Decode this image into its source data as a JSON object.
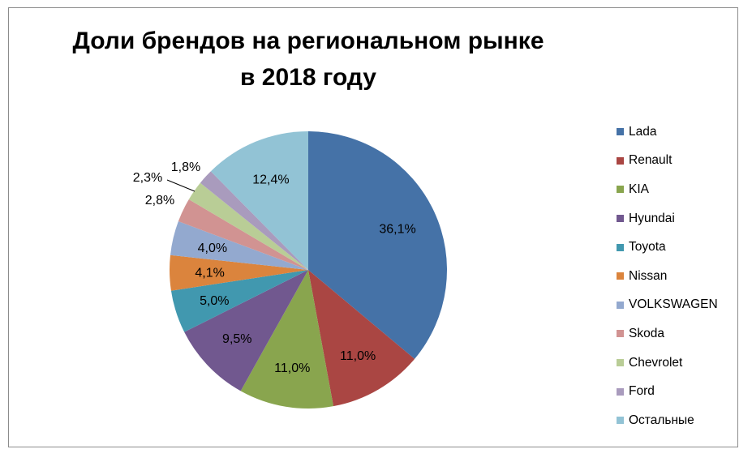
{
  "chart_data": {
    "type": "pie",
    "title_lines": [
      "Доли брендов на региональном рынке",
      "в 2018 году"
    ],
    "categories": [
      "Lada",
      "Renault",
      "KIA",
      "Hyundai",
      "Toyota",
      "Nissan",
      "VOLKSWAGEN",
      "Skoda",
      "Chevrolet",
      "Ford",
      "Остальные"
    ],
    "values": [
      36.1,
      11.0,
      11.0,
      9.5,
      5.0,
      4.1,
      4.0,
      2.8,
      2.3,
      1.8,
      12.4
    ],
    "labels": [
      "36,1%",
      "11,0%",
      "11,0%",
      "9,5%",
      "5,0%",
      "4,1%",
      "4,0%",
      "2,8%",
      "2,3%",
      "1,8%",
      "12,4%"
    ],
    "colors": [
      "#4572A7",
      "#AA4643",
      "#89A54E",
      "#71588F",
      "#4198AF",
      "#DB843D",
      "#93A9CF",
      "#D19392",
      "#B9CD96",
      "#A99BBD",
      "#92C3D5"
    ],
    "legend_position": "right",
    "start": "top, clockwise"
  }
}
